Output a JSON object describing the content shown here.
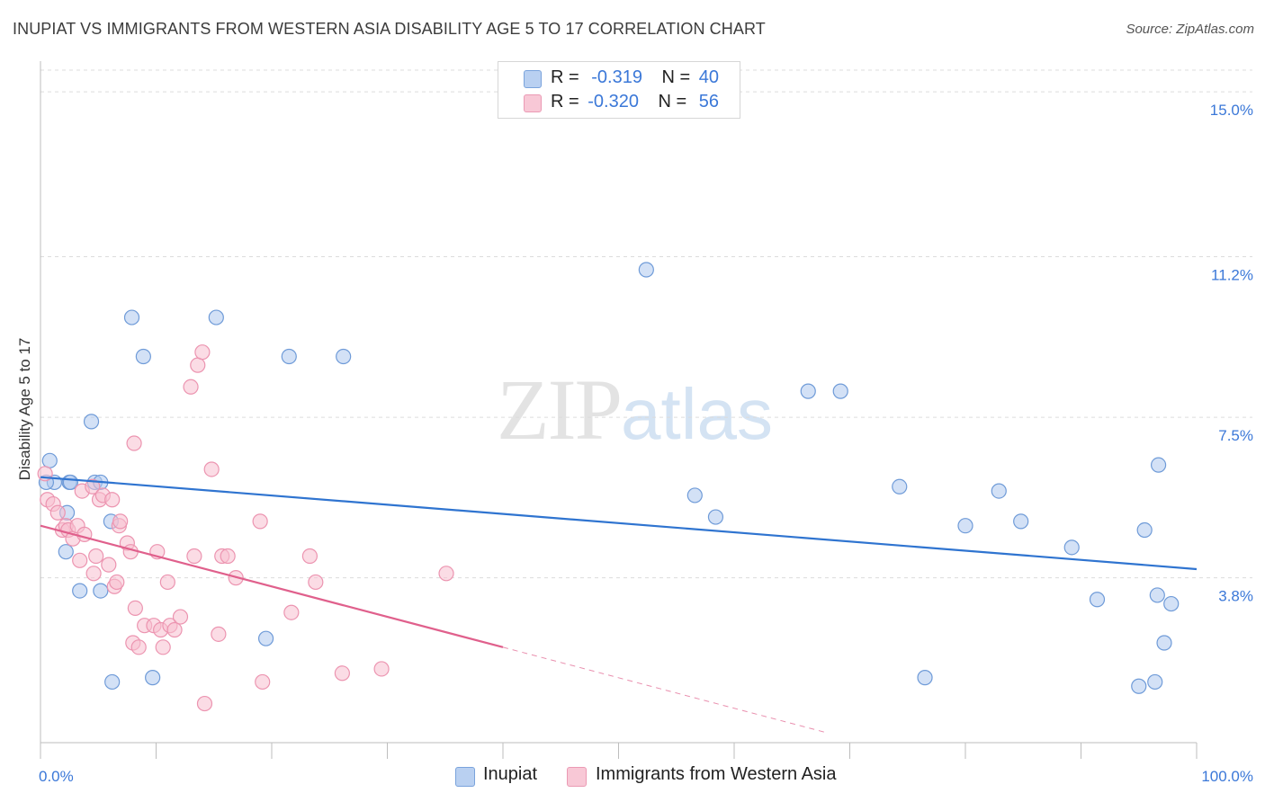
{
  "header": {
    "title": "INUPIAT VS IMMIGRANTS FROM WESTERN ASIA DISABILITY AGE 5 TO 17 CORRELATION CHART",
    "source": "Source: ZipAtlas.com"
  },
  "legend": {
    "inupiat": {
      "r_label": "R =",
      "r_value": "-0.319",
      "n_label": "N =",
      "n_value": "40"
    },
    "immigrants": {
      "r_label": "R =",
      "r_value": "-0.320",
      "n_label": "N =",
      "n_value": "56"
    }
  },
  "bottom_legend": {
    "inupiat": "Inupiat",
    "immigrants": "Immigrants from Western Asia"
  },
  "watermark": {
    "zip": "ZIP",
    "atlas": "atlas"
  },
  "colors": {
    "inupiat_fill": "#aec8ee",
    "inupiat_stroke": "#6f9bd8",
    "inupiat_line": "#2f74d0",
    "immig_fill": "#f7c0d0",
    "immig_stroke": "#ec94b0",
    "immig_line": "#e0608c",
    "tick_label": "#3b78d8",
    "grid": "#dcdcdc"
  },
  "chart_data": {
    "type": "scatter",
    "title": "INUPIAT VS IMMIGRANTS FROM WESTERN ASIA DISABILITY AGE 5 TO 17 CORRELATION CHART",
    "xlabel": "",
    "ylabel": "Disability Age 5 to 17",
    "xlim": [
      0,
      100
    ],
    "ylim": [
      0,
      15.5
    ],
    "x_tick_labels": [
      "0.0%",
      "100.0%"
    ],
    "y_ticks": [
      3.8,
      7.5,
      11.2,
      15.0
    ],
    "y_tick_labels": [
      "3.8%",
      "7.5%",
      "11.2%",
      "15.0%"
    ],
    "grid": true,
    "legend_position": "top-center",
    "series": [
      {
        "name": "Inupiat",
        "points": [
          [
            0.8,
            6.5
          ],
          [
            1.2,
            6.0
          ],
          [
            2.2,
            4.4
          ],
          [
            2.3,
            5.3
          ],
          [
            2.5,
            6.0
          ],
          [
            3.4,
            3.5
          ],
          [
            4.4,
            7.4
          ],
          [
            4.7,
            6.0
          ],
          [
            5.2,
            6.0
          ],
          [
            5.2,
            3.5
          ],
          [
            6.1,
            5.1
          ],
          [
            6.2,
            1.4
          ],
          [
            7.9,
            9.8
          ],
          [
            8.9,
            8.9
          ],
          [
            9.7,
            1.5
          ],
          [
            15.2,
            9.8
          ],
          [
            19.5,
            2.4
          ],
          [
            21.5,
            8.9
          ],
          [
            26.2,
            8.9
          ],
          [
            52.4,
            10.9
          ],
          [
            56.6,
            5.7
          ],
          [
            58.4,
            5.2
          ],
          [
            66.4,
            8.1
          ],
          [
            69.2,
            8.1
          ],
          [
            74.3,
            5.9
          ],
          [
            76.5,
            1.5
          ],
          [
            80.0,
            5.0
          ],
          [
            82.9,
            5.8
          ],
          [
            84.8,
            5.1
          ],
          [
            89.2,
            4.5
          ],
          [
            91.4,
            3.3
          ],
          [
            95.0,
            1.3
          ],
          [
            95.5,
            4.9
          ],
          [
            96.4,
            1.4
          ],
          [
            96.6,
            3.4
          ],
          [
            96.7,
            6.4
          ],
          [
            97.2,
            2.3
          ],
          [
            97.8,
            3.2
          ],
          [
            0.5,
            6.0
          ],
          [
            2.6,
            6.0
          ]
        ],
        "trend": {
          "x": [
            0,
            100
          ],
          "y": [
            6.12,
            4.0
          ]
        }
      },
      {
        "name": "Immigrants from Western Asia",
        "points": [
          [
            0.4,
            6.2
          ],
          [
            0.6,
            5.6
          ],
          [
            1.1,
            5.5
          ],
          [
            1.5,
            5.3
          ],
          [
            1.9,
            4.9
          ],
          [
            2.2,
            5.0
          ],
          [
            2.4,
            4.9
          ],
          [
            2.8,
            4.7
          ],
          [
            3.2,
            5.0
          ],
          [
            3.4,
            4.2
          ],
          [
            3.6,
            5.8
          ],
          [
            3.8,
            4.8
          ],
          [
            4.5,
            5.9
          ],
          [
            4.6,
            3.9
          ],
          [
            4.8,
            4.3
          ],
          [
            5.1,
            5.6
          ],
          [
            5.4,
            5.7
          ],
          [
            5.9,
            4.1
          ],
          [
            6.2,
            5.6
          ],
          [
            6.4,
            3.6
          ],
          [
            6.6,
            3.7
          ],
          [
            6.8,
            5.0
          ],
          [
            6.9,
            5.1
          ],
          [
            7.5,
            4.6
          ],
          [
            7.8,
            4.4
          ],
          [
            8.0,
            2.3
          ],
          [
            8.1,
            6.9
          ],
          [
            8.2,
            3.1
          ],
          [
            8.5,
            2.2
          ],
          [
            9.0,
            2.7
          ],
          [
            9.8,
            2.7
          ],
          [
            10.1,
            4.4
          ],
          [
            10.4,
            2.6
          ],
          [
            10.6,
            2.2
          ],
          [
            11.0,
            3.7
          ],
          [
            11.2,
            2.7
          ],
          [
            11.6,
            2.6
          ],
          [
            12.1,
            2.9
          ],
          [
            13.0,
            8.2
          ],
          [
            13.3,
            4.3
          ],
          [
            13.6,
            8.7
          ],
          [
            14.0,
            9.0
          ],
          [
            14.2,
            0.9
          ],
          [
            14.8,
            6.3
          ],
          [
            15.4,
            2.5
          ],
          [
            15.7,
            4.3
          ],
          [
            16.2,
            4.3
          ],
          [
            16.9,
            3.8
          ],
          [
            19.0,
            5.1
          ],
          [
            19.2,
            1.4
          ],
          [
            21.7,
            3.0
          ],
          [
            23.3,
            4.3
          ],
          [
            23.8,
            3.7
          ],
          [
            26.1,
            1.6
          ],
          [
            29.5,
            1.7
          ],
          [
            35.1,
            3.9
          ]
        ],
        "trend": {
          "x": [
            0,
            40
          ],
          "y": [
            5.0,
            2.2
          ]
        },
        "trend_dashed": {
          "x": [
            40,
            68
          ],
          "y": [
            2.2,
            0.23
          ]
        }
      }
    ]
  }
}
